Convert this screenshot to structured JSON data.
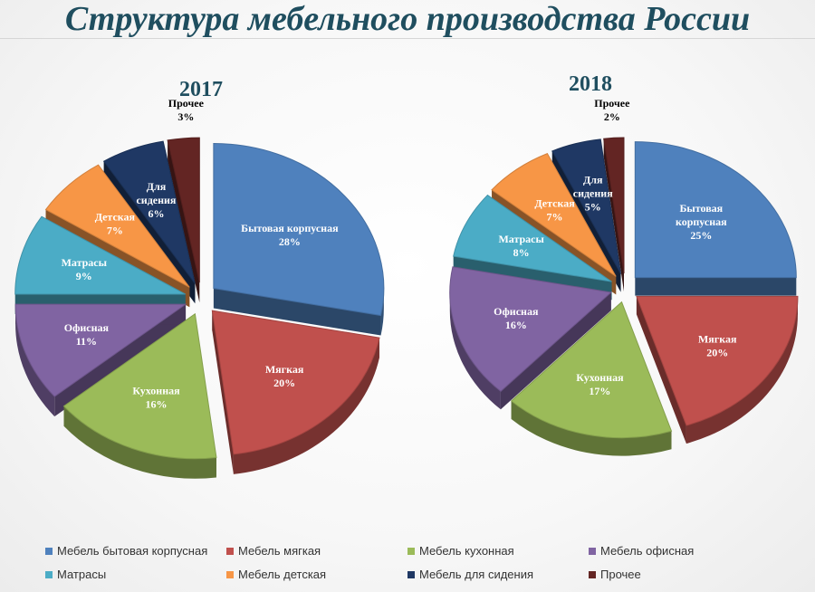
{
  "title": "Структура мебельного производства России",
  "chart_data": [
    {
      "type": "pie",
      "title": "2017",
      "categories": [
        "Бытовая корпусная",
        "Мягкая",
        "Кухонная",
        "Офисная",
        "Матрасы",
        "Детская",
        "Для сидения",
        "Прочее"
      ],
      "values": [
        28,
        20,
        16,
        11,
        9,
        7,
        6,
        3
      ],
      "value_labels": [
        "28%",
        "20%",
        "16%",
        "11%",
        "9%",
        "7%",
        "6%",
        "3%"
      ],
      "exploded": true,
      "three_d": true
    },
    {
      "type": "pie",
      "title": "2018",
      "categories": [
        "Бытовая корпусная",
        "Мягкая",
        "Кухонная",
        "Офисная",
        "Матрасы",
        "Детская",
        "Для сидения",
        "Прочее"
      ],
      "values": [
        25,
        20,
        17,
        16,
        8,
        7,
        5,
        2
      ],
      "value_labels": [
        "25%",
        "20%",
        "17%",
        "16%",
        "8%",
        "7%",
        "5%",
        "2%"
      ],
      "exploded": true,
      "three_d": true
    }
  ],
  "series_colors": [
    "#4F81BD",
    "#C0504D",
    "#9BBB59",
    "#8064A2",
    "#4BACC6",
    "#F79646",
    "#1F3864",
    "#632523"
  ],
  "label_colors": [
    "#ffffff",
    "#ffffff",
    "#ffffff",
    "#ffffff",
    "#ffffff",
    "#ffffff",
    "#ffffff",
    "#000000"
  ],
  "legend": {
    "position": "bottom",
    "items": [
      "Мебель бытовая корпусная",
      "Мебель мягкая",
      "Мебель кухонная",
      "Мебель офисная",
      "Матрасы",
      "Мебель детская",
      "Мебель для сидения",
      "Прочее"
    ]
  }
}
